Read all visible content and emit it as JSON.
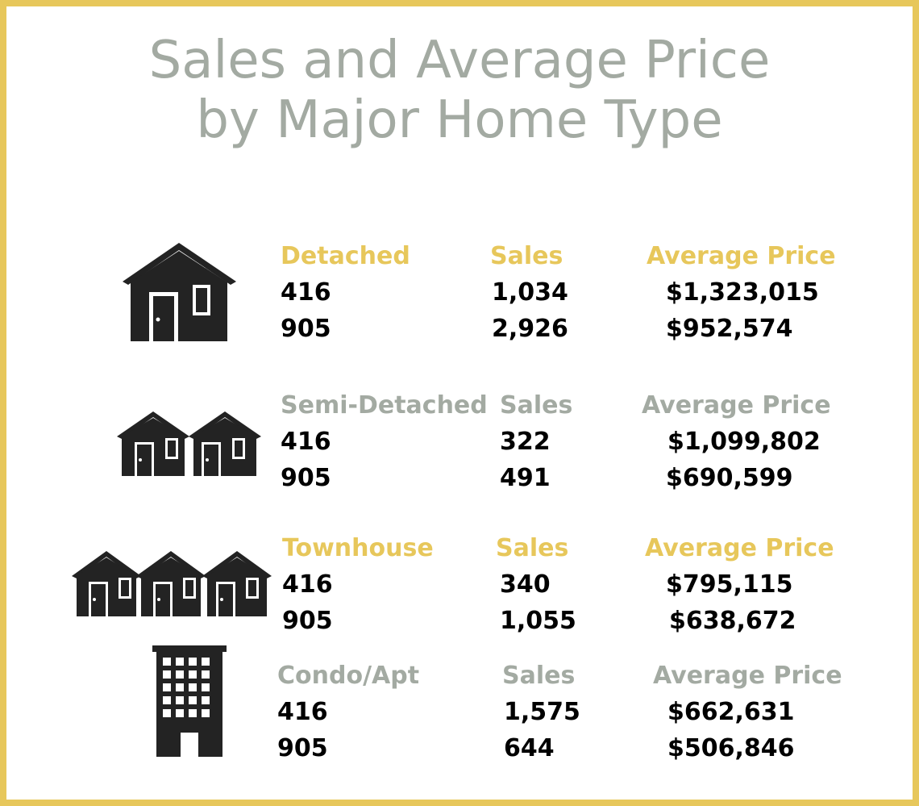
{
  "title": {
    "line1": "Sales and Average Price",
    "line2": "by Major Home Type"
  },
  "colors": {
    "frame": "#e7c75b",
    "title": "#a3aaa2",
    "gold": "#e7c75b",
    "grey": "#a3aaa2",
    "value": "#000000",
    "icon": "#232323"
  },
  "chart_data": {
    "type": "table",
    "title": "Sales and Average Price by Major Home Type",
    "columns": [
      "Sales",
      "Average Price"
    ],
    "groups": [
      {
        "type": "Detached",
        "header_color": "#e7c75b",
        "icon": "single-house-icon",
        "sales_label": "Sales",
        "price_label": "Average Price",
        "rows": [
          {
            "region": "416",
            "sales": "1,034",
            "price": "$1,323,015"
          },
          {
            "region": "905",
            "sales": "2,926",
            "price": "$952,574"
          }
        ]
      },
      {
        "type": "Semi-Detached",
        "header_color": "#a3aaa2",
        "icon": "semi-detached-houses-icon",
        "sales_label": "Sales",
        "price_label": "Average Price",
        "rows": [
          {
            "region": "416",
            "sales": "322",
            "price": "$1,099,802"
          },
          {
            "region": "905",
            "sales": "491",
            "price": "$690,599"
          }
        ]
      },
      {
        "type": "Townhouse",
        "header_color": "#e7c75b",
        "icon": "townhouses-icon",
        "sales_label": "Sales",
        "price_label": "Average Price",
        "rows": [
          {
            "region": "416",
            "sales": "340",
            "price": "$795,115"
          },
          {
            "region": "905",
            "sales": "1,055",
            "price": "$638,672"
          }
        ]
      },
      {
        "type": "Condo/Apt",
        "header_color": "#a3aaa2",
        "icon": "apartment-building-icon",
        "sales_label": "Sales",
        "price_label": "Average Price",
        "rows": [
          {
            "region": "416",
            "sales": "1,575",
            "price": "$662,631"
          },
          {
            "region": "905",
            "sales": "644",
            "price": "$506,846"
          }
        ]
      }
    ]
  }
}
